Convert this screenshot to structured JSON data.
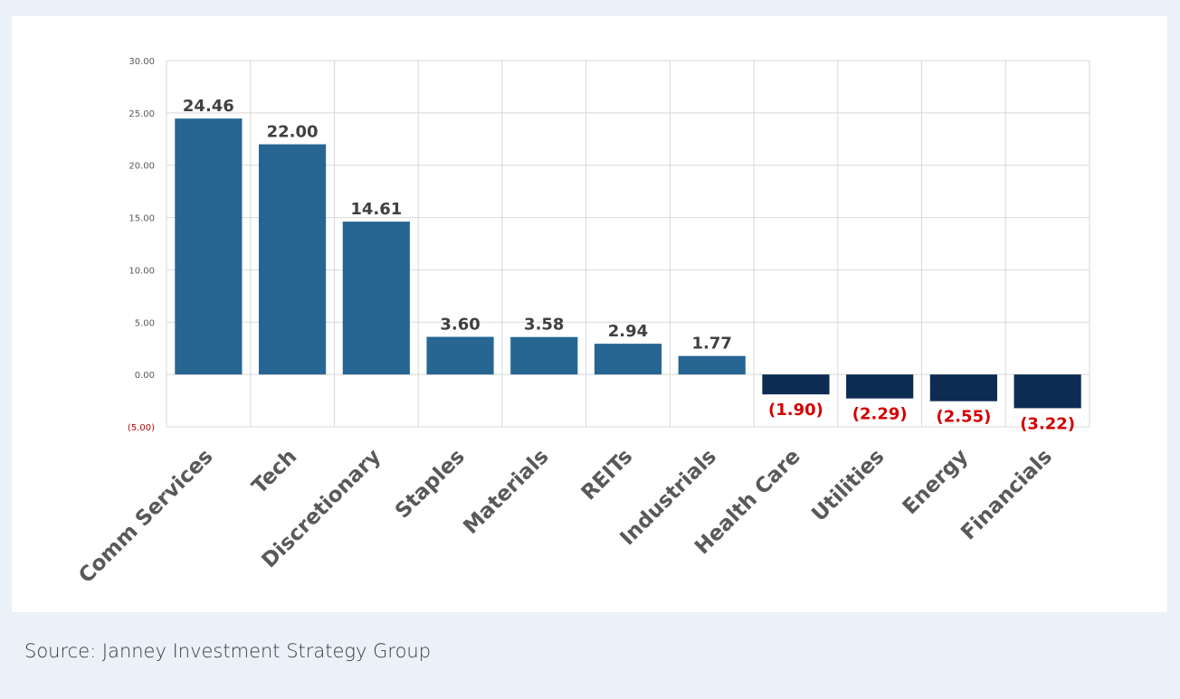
{
  "chart_data": {
    "type": "bar",
    "title": "",
    "xlabel": "",
    "ylabel": "",
    "categories": [
      "Comm Services",
      "Tech",
      "Discretionary",
      "Staples",
      "Materials",
      "REITs",
      "Industrials",
      "Health Care",
      "Utilities",
      "Energy",
      "Financials"
    ],
    "values": [
      24.46,
      22.0,
      14.61,
      3.6,
      3.58,
      2.94,
      1.77,
      -1.9,
      -2.29,
      -2.55,
      -3.22
    ],
    "data_labels": [
      "24.46",
      "22.00",
      "14.61",
      "3.60",
      "3.58",
      "2.94",
      "1.77",
      "(1.90)",
      "(2.29)",
      "(2.55)",
      "(3.22)"
    ],
    "y_ticks": [
      30,
      25,
      20,
      15,
      10,
      5,
      0,
      -5
    ],
    "y_tick_labels": [
      "30.00",
      "25.00",
      "20.00",
      "15.00",
      "10.00",
      "5.00",
      "0.00",
      "(5.00)"
    ],
    "ylim": [
      -5,
      30
    ],
    "grid": true,
    "colors": {
      "positive_bar": "#276692",
      "negative_bar": "#0d2c52",
      "positive_label": "#404040",
      "negative_label": "#d40000",
      "tick_label": "#595959",
      "negative_tick_label": "#c00000",
      "grid": "#d9d9d9"
    }
  },
  "source": "Source: Janney Investment Strategy Group"
}
